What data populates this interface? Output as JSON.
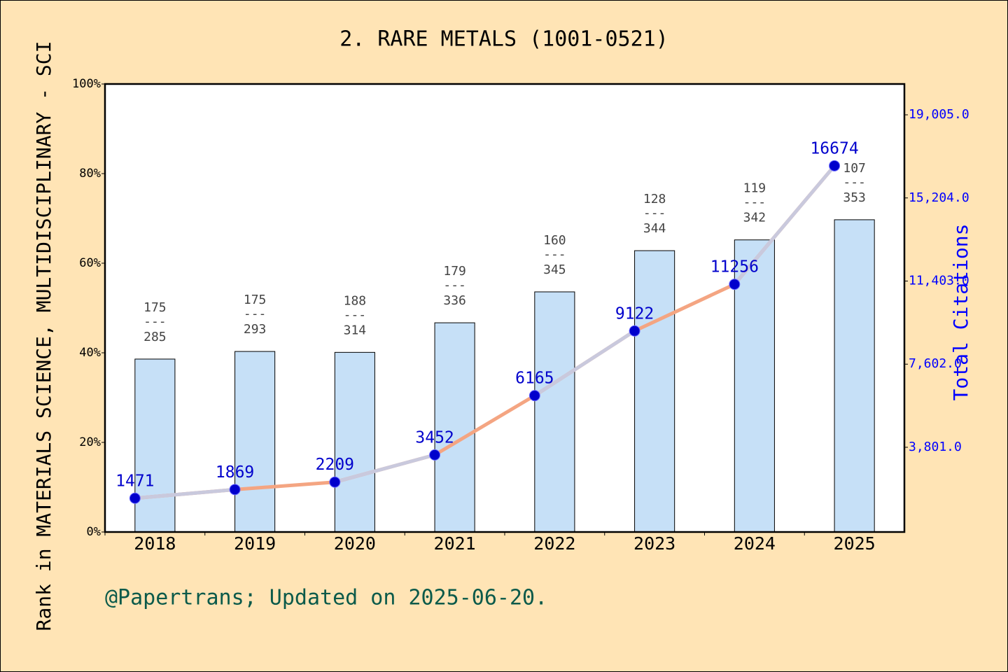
{
  "chart_data": {
    "type": "bar-line",
    "title": "2. RARE METALS (1001-0521)",
    "ylabel": "Rank in MATERIALS SCIENCE, MULTIDISCIPLINARY - SCI",
    "y2label": "Total Citations",
    "footer": "@Papertrans; Updated on 2025-06-20.",
    "categories": [
      "2018",
      "2019",
      "2020",
      "2021",
      "2022",
      "2023",
      "2024",
      "2025"
    ],
    "series": [
      {
        "type": "bar",
        "color": "#c6e0f7",
        "values": [
          38.6,
          40.3,
          40.1,
          46.7,
          53.6,
          62.8,
          65.2,
          69.7
        ]
      },
      {
        "type": "line",
        "axis": "y2",
        "color": "#f4a582",
        "alt_color": "#c9c9dd",
        "marker_color": "#0000cc",
        "label_color": "#0000cc",
        "values": [
          1471,
          1869,
          2209,
          3452,
          6165,
          9122,
          11256,
          16674
        ]
      }
    ],
    "rank": [
      175,
      175,
      188,
      179,
      160,
      128,
      119,
      107
    ],
    "total": [
      285,
      293,
      314,
      336,
      345,
      344,
      342,
      353
    ],
    "separator": "---",
    "ylim": [
      0,
      100
    ],
    "yticks": [
      {
        "value": 0,
        "label": "0%"
      },
      {
        "value": 20,
        "label": "20%"
      },
      {
        "value": 40,
        "label": "40%"
      },
      {
        "value": 60,
        "label": "60%"
      },
      {
        "value": 80,
        "label": "80%"
      },
      {
        "value": 100,
        "label": "100%"
      }
    ],
    "y2lim": [
      -73,
      20414
    ],
    "y2ticks": [
      {
        "value": 3801,
        "label": "3,801.0"
      },
      {
        "value": 7602,
        "label": "7,602.0"
      },
      {
        "value": 11403,
        "label": "11,403.0"
      },
      {
        "value": 15204,
        "label": "15,204.0"
      },
      {
        "value": 19005,
        "label": "19,005.0"
      }
    ]
  }
}
